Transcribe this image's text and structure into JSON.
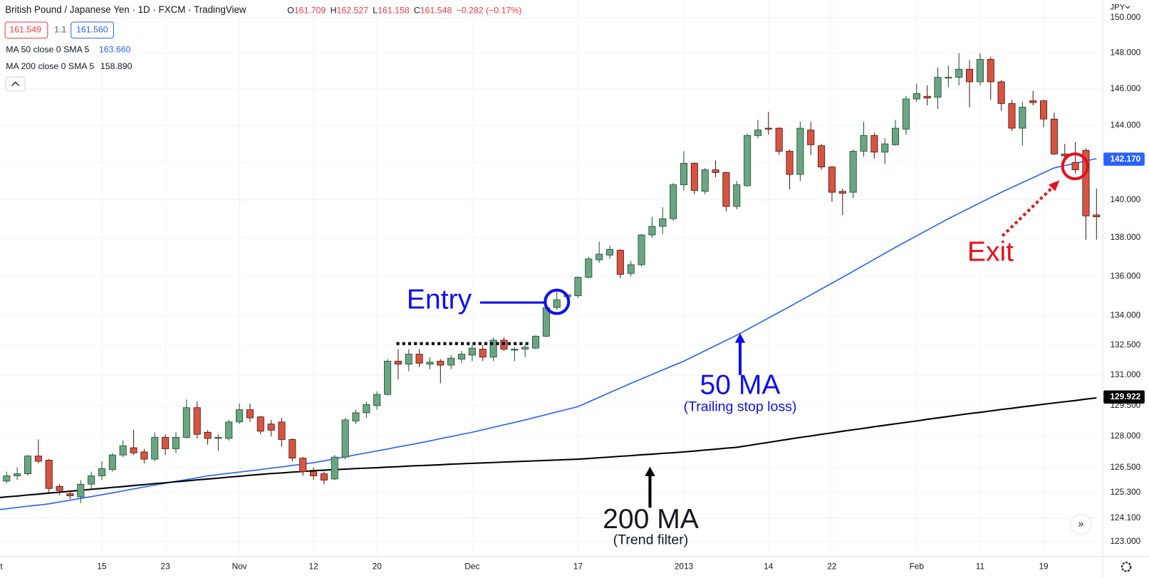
{
  "ui": {
    "symbol": "British Pound / Japanese Yen · 1D · FXCM · TradingView",
    "ohlc": [
      {
        "k": "O",
        "v": "161.709"
      },
      {
        "k": "H",
        "v": "162.527"
      },
      {
        "k": "L",
        "v": "161.158"
      },
      {
        "k": "C",
        "v": "161.548"
      }
    ],
    "change": "−0.282 (−0.17%)",
    "sell": "161.549",
    "spread": "1.1",
    "buy": "161.560",
    "currency": "JPY"
  },
  "annotations": {
    "entry": "Entry",
    "exit": "Exit",
    "ma50": "50 MA",
    "ma50_note": "(Trailing stop loss)",
    "ma200": "200 MA",
    "ma200_note": "(Trend filter)"
  },
  "chart_data": {
    "type": "candlestick",
    "log_scale": true,
    "grid": true,
    "up_color": "#6ba583",
    "down_color": "#d75442",
    "categories": [
      "Oct",
      null,
      null,
      null,
      null,
      null,
      null,
      null,
      null,
      null,
      "15",
      null,
      null,
      null,
      null,
      null,
      "23",
      null,
      null,
      null,
      null,
      null,
      null,
      "Nov",
      null,
      null,
      null,
      null,
      null,
      null,
      "12",
      null,
      null,
      null,
      null,
      null,
      "20",
      null,
      null,
      null,
      null,
      null,
      null,
      null,
      null,
      "Dec",
      null,
      null,
      null,
      null,
      null,
      null,
      null,
      null,
      null,
      "17",
      null,
      null,
      null,
      null,
      null,
      null,
      null,
      null,
      null,
      "2013",
      null,
      null,
      null,
      null,
      null,
      null,
      null,
      "14",
      null,
      null,
      null,
      null,
      null,
      "22",
      null,
      null,
      null,
      null,
      null,
      null,
      null,
      "Feb",
      null,
      null,
      null,
      null,
      null,
      "11",
      null,
      null,
      null,
      null,
      null,
      "19",
      null,
      null,
      null,
      null,
      null
    ],
    "open": [
      null,
      125.85,
      126.1,
      126.2,
      127.05,
      126.85,
      125.6,
      125.25,
      125.1,
      125.7,
      126.1,
      126.4,
      127.1,
      127.45,
      127.25,
      126.9,
      127.95,
      127.4,
      127.95,
      129.4,
      128.2,
      127.9,
      127.9,
      128.7,
      129.3,
      128.95,
      128.6,
      128.7,
      127.85,
      126.95,
      126.3,
      126.2,
      125.95,
      127.0,
      128.75,
      129.15,
      129.5,
      130.05,
      131.7,
      131.55,
      132.05,
      131.55,
      131.7,
      131.5,
      131.8,
      132.0,
      132.3,
      131.9,
      132.75,
      132.25,
      132.3,
      132.35,
      132.95,
      134.4,
      134.95,
      135.0,
      135.95,
      136.85,
      137.1,
      137.35,
      136.15,
      136.6,
      138.15,
      138.6,
      139.0,
      140.8,
      141.95,
      140.45,
      141.6,
      141.45,
      139.65,
      140.75,
      143.45,
      143.85,
      143.85,
      142.6,
      141.35,
      143.75,
      142.9,
      141.75,
      140.45,
      140.4,
      142.6,
      143.45,
      142.55,
      142.95,
      143.8,
      145.45,
      145.6,
      145.55,
      146.6,
      146.65,
      147.1,
      146.4,
      147.65,
      146.4,
      145.2,
      143.85,
      145.35,
      145.35,
      144.35,
      142.45,
      142.0,
      142.65,
      139.2
    ],
    "high": [
      null,
      126.3,
      126.5,
      127.1,
      127.85,
      126.9,
      125.7,
      125.4,
      125.9,
      126.3,
      126.8,
      127.2,
      127.8,
      128.3,
      127.4,
      128.2,
      128.1,
      128.2,
      129.8,
      129.7,
      128.3,
      128.1,
      128.8,
      129.6,
      129.6,
      129.0,
      128.8,
      128.9,
      127.9,
      127.0,
      126.5,
      126.3,
      127.1,
      128.9,
      129.3,
      129.7,
      130.2,
      131.8,
      132.3,
      132.3,
      132.3,
      131.9,
      131.8,
      132.0,
      132.2,
      132.5,
      132.5,
      132.9,
      132.9,
      132.4,
      132.5,
      133.0,
      134.5,
      135.2,
      135.1,
      136.0,
      137.0,
      137.8,
      137.6,
      137.4,
      136.8,
      138.2,
      139.1,
      139.6,
      140.9,
      142.6,
      142.0,
      141.7,
      142.1,
      141.5,
      141.0,
      143.55,
      144.3,
      144.75,
      143.9,
      142.7,
      144.2,
      144.2,
      143.0,
      141.8,
      140.6,
      142.7,
      144.2,
      143.6,
      143.3,
      144.3,
      145.6,
      146.3,
      146.2,
      147.2,
      147.3,
      148.0,
      147.6,
      148.0,
      147.8,
      146.5,
      145.4,
      145.3,
      145.9,
      145.4,
      144.7,
      143.0,
      143.1,
      142.75,
      140.6
    ],
    "low": [
      null,
      125.75,
      125.9,
      126.1,
      126.7,
      125.3,
      125.2,
      125.0,
      124.8,
      125.5,
      125.9,
      126.3,
      127.0,
      127.1,
      126.7,
      126.8,
      127.1,
      127.2,
      127.9,
      127.9,
      127.6,
      127.3,
      127.8,
      128.6,
      128.7,
      128.1,
      128.0,
      127.5,
      126.8,
      126.1,
      125.9,
      125.7,
      125.9,
      126.9,
      128.6,
      128.9,
      129.3,
      130.0,
      130.8,
      131.2,
      131.4,
      131.3,
      130.6,
      131.3,
      131.6,
      131.7,
      131.7,
      131.7,
      132.2,
      131.7,
      131.9,
      132.3,
      132.9,
      134.3,
      134.9,
      134.9,
      135.9,
      136.7,
      136.9,
      135.9,
      136.0,
      136.5,
      138.0,
      138.2,
      138.9,
      140.5,
      140.3,
      140.3,
      141.2,
      139.4,
      139.5,
      140.7,
      143.3,
      143.5,
      142.4,
      140.55,
      141.0,
      142.4,
      141.6,
      139.9,
      139.2,
      140.1,
      142.3,
      142.2,
      141.9,
      142.9,
      143.5,
      145.3,
      145.1,
      144.9,
      146.1,
      146.2,
      145.0,
      146.2,
      145.4,
      144.8,
      143.7,
      142.9,
      145.1,
      143.9,
      142.4,
      142.0,
      141.4,
      137.9,
      137.9
    ],
    "close": [
      null,
      126.1,
      126.2,
      127.05,
      126.8,
      125.5,
      125.4,
      125.15,
      125.7,
      126.1,
      126.45,
      127.1,
      127.55,
      127.2,
      126.9,
      127.95,
      127.4,
      127.95,
      129.4,
      128.1,
      127.9,
      127.95,
      128.7,
      129.3,
      128.9,
      128.25,
      128.3,
      127.85,
      126.95,
      126.3,
      126.1,
      125.9,
      127.0,
      128.8,
      129.15,
      129.55,
      130.05,
      131.7,
      131.55,
      132.05,
      131.6,
      131.65,
      131.5,
      131.85,
      132.05,
      132.35,
      131.9,
      132.75,
      132.3,
      132.3,
      132.4,
      132.95,
      134.4,
      134.8,
      135.05,
      135.95,
      136.9,
      137.15,
      137.4,
      136.1,
      136.6,
      138.15,
      138.6,
      139.0,
      140.8,
      141.95,
      140.5,
      141.6,
      141.45,
      139.65,
      140.8,
      143.45,
      143.75,
      143.8,
      142.6,
      141.35,
      143.85,
      142.95,
      141.75,
      140.4,
      140.35,
      142.6,
      143.45,
      142.55,
      143.0,
      143.85,
      145.45,
      145.75,
      145.5,
      146.65,
      146.65,
      147.1,
      146.4,
      147.65,
      146.4,
      145.2,
      143.85,
      145.0,
      145.25,
      144.35,
      142.45,
      142.35,
      141.6,
      139.15,
      139.1
    ],
    "series": [
      {
        "name": "MA 50 close 0 SMA 5",
        "color": "#2962ff",
        "last_value": {
          "value": 163.66,
          "label": "163.660"
        },
        "price_tag": {
          "value": 142.17,
          "label": "142.170"
        },
        "values": [
          124.48,
          124.54,
          124.6,
          124.66,
          124.71,
          124.77,
          124.86,
          124.94,
          125.03,
          125.11,
          125.2,
          125.29,
          125.38,
          125.48,
          125.57,
          125.66,
          125.75,
          125.84,
          125.92,
          126.01,
          126.1,
          126.16,
          126.22,
          126.28,
          126.34,
          126.4,
          126.47,
          126.53,
          126.6,
          126.66,
          126.73,
          126.82,
          126.92,
          127.01,
          127.11,
          127.2,
          127.3,
          127.39,
          127.49,
          127.58,
          127.68,
          127.78,
          127.89,
          127.99,
          128.1,
          128.2,
          128.32,
          128.44,
          128.56,
          128.68,
          128.8,
          128.93,
          129.06,
          129.19,
          129.32,
          129.45,
          129.68,
          129.91,
          130.14,
          130.37,
          130.6,
          130.82,
          131.04,
          131.26,
          131.48,
          131.7,
          131.96,
          132.22,
          132.48,
          132.74,
          133.0,
          133.29,
          133.58,
          133.87,
          134.16,
          134.45,
          134.75,
          135.05,
          135.35,
          135.65,
          135.95,
          136.26,
          136.57,
          136.88,
          137.19,
          137.5,
          137.8,
          138.1,
          138.4,
          138.7,
          139.0,
          139.28,
          139.56,
          139.84,
          140.12,
          140.4,
          140.66,
          140.92,
          141.18,
          141.44,
          141.7,
          141.83,
          141.95,
          142.08,
          142.2
        ]
      },
      {
        "name": "MA 200 close 0 SMA 5",
        "color": "#000000",
        "last_value": {
          "value": 158.89,
          "label": "158.890"
        },
        "price_tag": {
          "value": 129.922,
          "label": "129.922"
        },
        "values": [
          125.05,
          125.1,
          125.14,
          125.19,
          125.23,
          125.28,
          125.32,
          125.37,
          125.41,
          125.46,
          125.5,
          125.55,
          125.59,
          125.64,
          125.68,
          125.73,
          125.77,
          125.82,
          125.86,
          125.91,
          125.95,
          125.99,
          126.04,
          126.08,
          126.13,
          126.17,
          126.21,
          126.24,
          126.28,
          126.31,
          126.35,
          126.37,
          126.4,
          126.42,
          126.45,
          126.47,
          126.49,
          126.52,
          126.54,
          126.57,
          126.59,
          126.61,
          126.63,
          126.66,
          126.68,
          126.7,
          126.72,
          126.74,
          126.76,
          126.78,
          126.8,
          126.82,
          126.84,
          126.86,
          126.88,
          126.9,
          126.93,
          126.97,
          127.0,
          127.04,
          127.07,
          127.11,
          127.14,
          127.18,
          127.21,
          127.25,
          127.29,
          127.34,
          127.38,
          127.43,
          127.47,
          127.55,
          127.63,
          127.71,
          127.79,
          127.87,
          127.95,
          128.02,
          128.1,
          128.17,
          128.25,
          128.32,
          128.39,
          128.47,
          128.54,
          128.61,
          128.68,
          128.75,
          128.83,
          128.9,
          128.97,
          129.04,
          129.11,
          129.17,
          129.24,
          129.31,
          129.37,
          129.44,
          129.5,
          129.57,
          129.63,
          129.69,
          129.75,
          129.82,
          129.88
        ]
      }
    ],
    "ylim": [
      122.3,
      151
    ],
    "yticks": [
      {
        "value": 150,
        "label": "150.000"
      },
      {
        "value": 148,
        "label": "148.000"
      },
      {
        "value": 146,
        "label": "146.000"
      },
      {
        "value": 144,
        "label": "144.000"
      },
      {
        "value": 142,
        "label": "142.000"
      },
      {
        "value": 140,
        "label": "140.000"
      },
      {
        "value": 138,
        "label": "138.000"
      },
      {
        "value": 136,
        "label": "136.000"
      },
      {
        "value": 134,
        "label": "134.000"
      },
      {
        "value": 132.5,
        "label": "132.500"
      },
      {
        "value": 131,
        "label": "131.000"
      },
      {
        "value": 129.5,
        "label": "129.500"
      },
      {
        "value": 128,
        "label": "128.000"
      },
      {
        "value": 126.5,
        "label": "126.500"
      },
      {
        "value": 125.3,
        "label": "125.300"
      },
      {
        "value": 124.1,
        "label": "124.100"
      },
      {
        "value": 123,
        "label": "123.000"
      }
    ]
  }
}
